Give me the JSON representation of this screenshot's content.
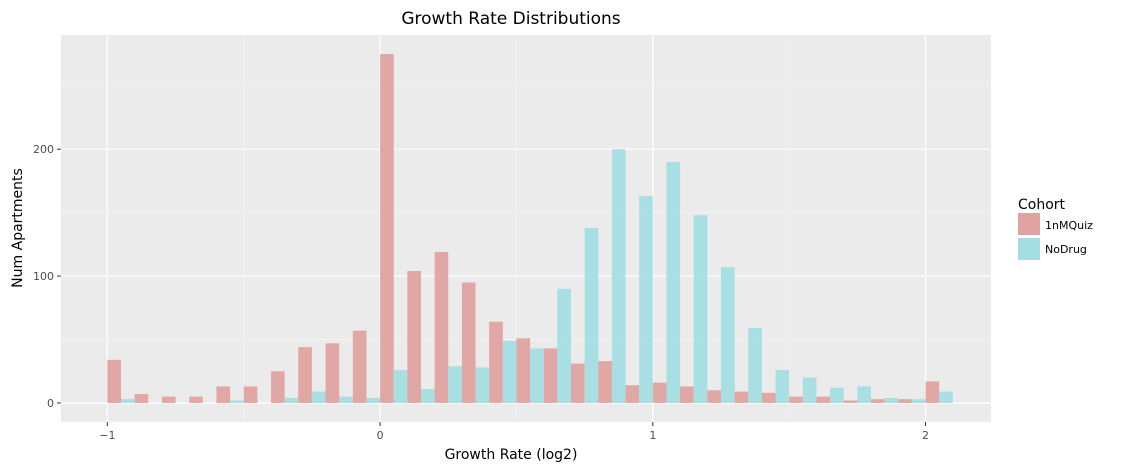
{
  "chart_data": {
    "type": "bar",
    "title": "Growth Rate Distributions",
    "xlabel": "Growth Rate (log2)",
    "ylabel": "Num Apartments",
    "xlim": [
      -1.17,
      2.24
    ],
    "ylim": [
      -15,
      290
    ],
    "xticks": [
      -1,
      0,
      1,
      2
    ],
    "xtick_labels": [
      "−1",
      "0",
      "1",
      "2"
    ],
    "yticks": [
      0,
      100,
      200
    ],
    "ytick_labels": [
      "0",
      "100",
      "200"
    ],
    "grid": true,
    "legend": {
      "title": "Cohort",
      "position": "right",
      "entries": [
        "1nMQuiz",
        "NoDrug"
      ]
    },
    "bin_centers": [
      -0.95,
      -0.85,
      -0.75,
      -0.65,
      -0.55,
      -0.45,
      -0.35,
      -0.25,
      -0.15,
      -0.05,
      0.05,
      0.15,
      0.25,
      0.35,
      0.45,
      0.55,
      0.65,
      0.75,
      0.85,
      0.95,
      1.05,
      1.15,
      1.25,
      1.35,
      1.45,
      1.55,
      1.65,
      1.75,
      1.85,
      1.95,
      2.05
    ],
    "series": [
      {
        "name": "1nMQuiz",
        "color": "#e0a3a1",
        "values": [
          34,
          7,
          5,
          5,
          13,
          13,
          25,
          44,
          47,
          57,
          275,
          104,
          119,
          95,
          64,
          51,
          43,
          31,
          33,
          14,
          16,
          13,
          10,
          9,
          8,
          5,
          5,
          2,
          3,
          3,
          17
        ]
      },
      {
        "name": "NoDrug",
        "color": "#a3dee3",
        "values": [
          3,
          0,
          0,
          0,
          2,
          0,
          4,
          9,
          5,
          4,
          26,
          11,
          29,
          28,
          49,
          43,
          90,
          138,
          200,
          163,
          190,
          148,
          107,
          59,
          26,
          20,
          12,
          13,
          4,
          3,
          9
        ]
      }
    ]
  }
}
